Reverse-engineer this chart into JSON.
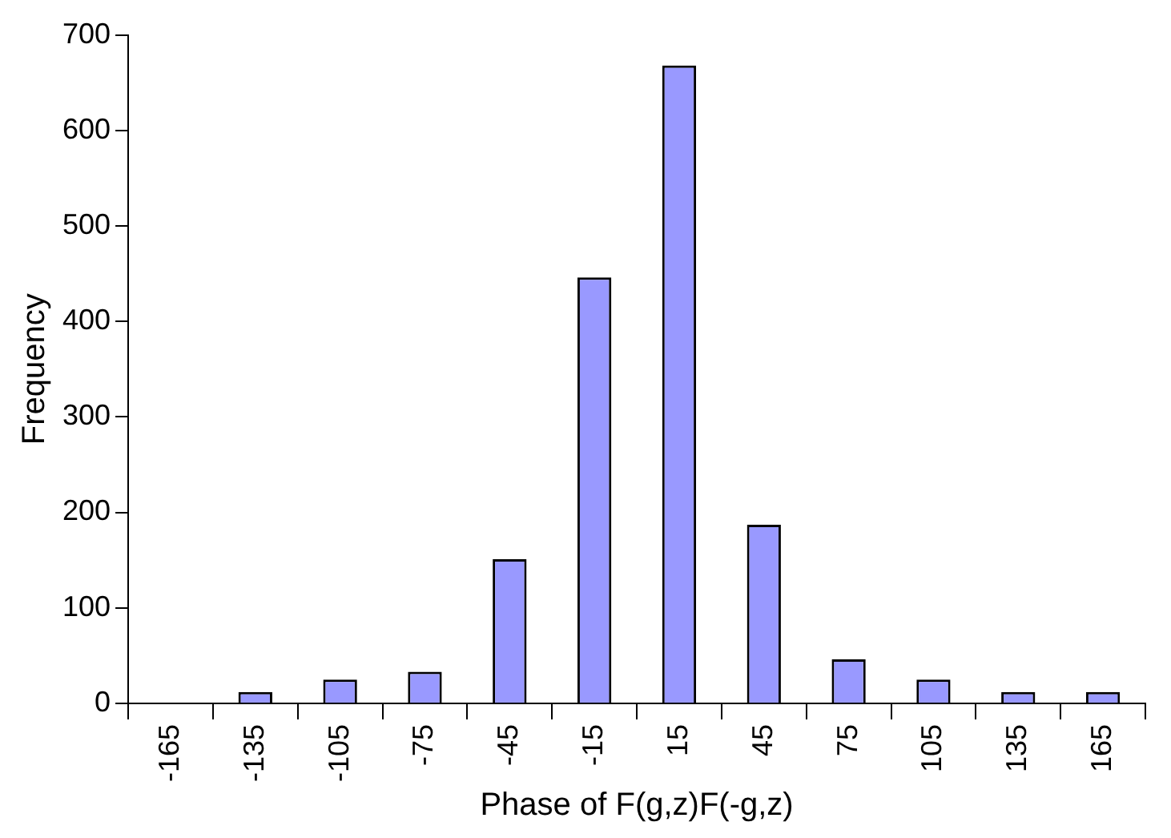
{
  "chart_data": {
    "type": "bar",
    "xlabel": "Phase of F(g,z)F(-g,z)",
    "ylabel": "Frequency",
    "categories": [
      "-165",
      "-135",
      "-105",
      "-75",
      "-45",
      "-15",
      "15",
      "45",
      "75",
      "105",
      "135",
      "165"
    ],
    "values": [
      0,
      12,
      25,
      33,
      151,
      446,
      668,
      187,
      46,
      25,
      12,
      12
    ],
    "color": "#9999ff",
    "ylim": [
      0,
      700
    ],
    "yticks": [
      0,
      100,
      200,
      300,
      400,
      500,
      600,
      700
    ],
    "grid": false,
    "legend": false
  }
}
